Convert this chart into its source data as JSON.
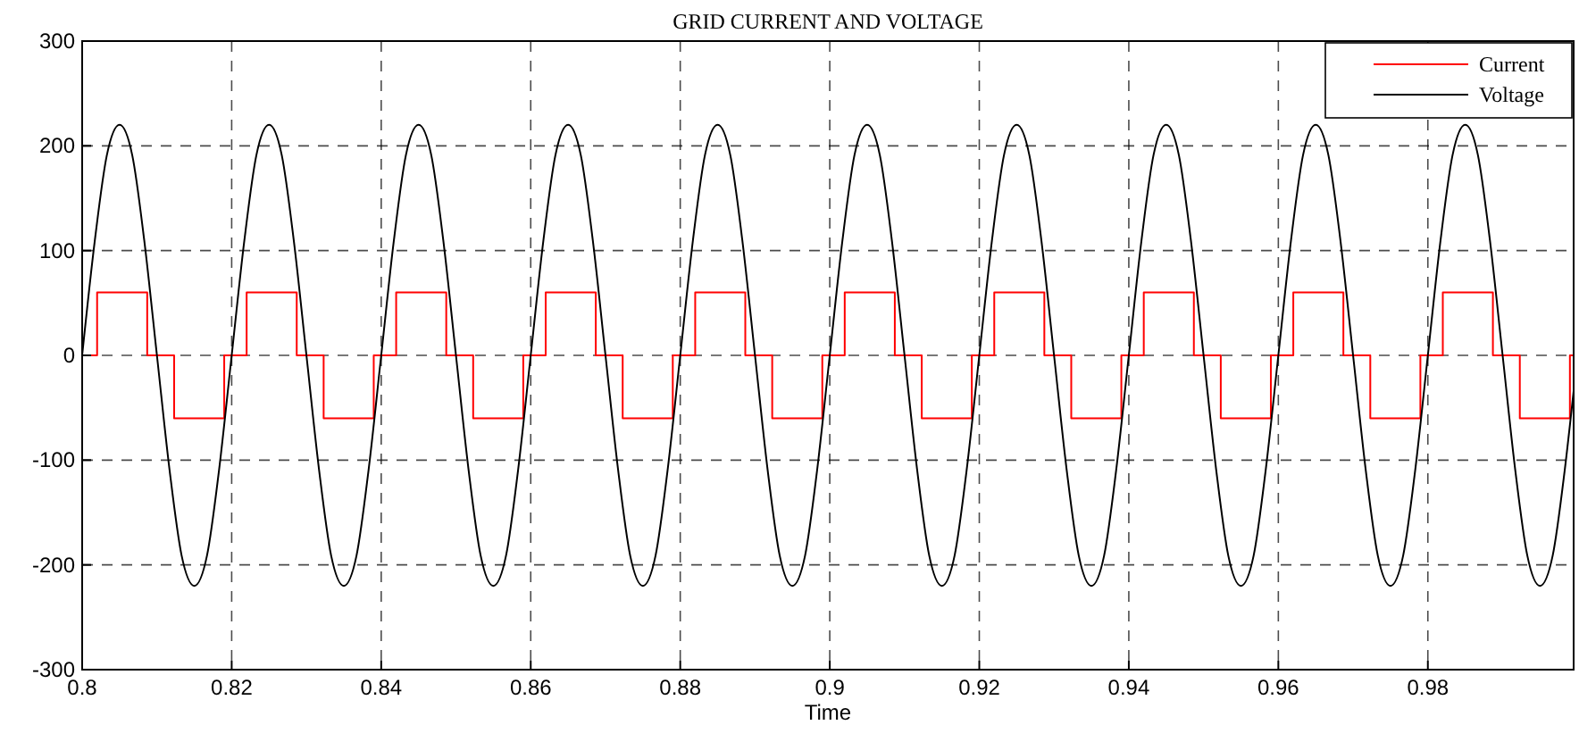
{
  "chart_data": {
    "type": "line",
    "title": "GRID CURRENT AND VOLTAGE",
    "xlabel": "Time",
    "xlim": [
      0.8,
      0.9995
    ],
    "ylim": [
      -300,
      300
    ],
    "xticks": [
      0.8,
      0.82,
      0.84,
      0.86,
      0.88,
      0.9,
      0.92,
      0.94,
      0.96,
      0.98
    ],
    "yticks": [
      -300,
      -200,
      -100,
      0,
      100,
      200,
      300
    ],
    "grid": true,
    "legend": "top right",
    "line_style": "solid",
    "marker": "none",
    "series": [
      {
        "name": "Current",
        "color": "#ff0000",
        "x": [
          0.8,
          0.802,
          0.802,
          0.8087,
          0.8087,
          0.8123,
          0.8123,
          0.819,
          0.819,
          0.822,
          0.822,
          0.8287,
          0.8287,
          0.8323,
          0.8323,
          0.839,
          0.839,
          0.842,
          0.842,
          0.8487,
          0.8487,
          0.8523,
          0.8523,
          0.859,
          0.859,
          0.862,
          0.862,
          0.8687,
          0.8687,
          0.8723,
          0.8723,
          0.879,
          0.879,
          0.882,
          0.882,
          0.8887,
          0.8887,
          0.8923,
          0.8923,
          0.899,
          0.899,
          0.902,
          0.902,
          0.9087,
          0.9087,
          0.9123,
          0.9123,
          0.919,
          0.919,
          0.922,
          0.922,
          0.9287,
          0.9287,
          0.9323,
          0.9323,
          0.939,
          0.939,
          0.942,
          0.942,
          0.9487,
          0.9487,
          0.9523,
          0.9523,
          0.959,
          0.959,
          0.962,
          0.962,
          0.9687,
          0.9687,
          0.9723,
          0.9723,
          0.979,
          0.979,
          0.982,
          0.982,
          0.9887,
          0.9887,
          0.9923,
          0.9923,
          0.999,
          0.999,
          0.9995
        ],
        "values": [
          0,
          0,
          60,
          60,
          0,
          0,
          -60,
          -60,
          0,
          0,
          60,
          60,
          0,
          0,
          -60,
          -60,
          0,
          0,
          60,
          60,
          0,
          0,
          -60,
          -60,
          0,
          0,
          60,
          60,
          0,
          0,
          -60,
          -60,
          0,
          0,
          60,
          60,
          0,
          0,
          -60,
          -60,
          0,
          0,
          60,
          60,
          0,
          0,
          -60,
          -60,
          0,
          0,
          60,
          60,
          0,
          0,
          -60,
          -60,
          0,
          0,
          60,
          60,
          0,
          0,
          -60,
          -60,
          0,
          0,
          60,
          60,
          0,
          0,
          -60,
          -60,
          0,
          0,
          60,
          60,
          0,
          0,
          -60,
          -60,
          0,
          0
        ]
      },
      {
        "name": "Voltage",
        "color": "#000000",
        "x": [
          0.8,
          0.8017,
          0.8033,
          0.805,
          0.8067,
          0.8083,
          0.81,
          0.8117,
          0.8133,
          0.815,
          0.8167,
          0.8183,
          0.82,
          0.8217,
          0.8233,
          0.825,
          0.8267,
          0.8283,
          0.83,
          0.8317,
          0.8333,
          0.835,
          0.8367,
          0.8383,
          0.84,
          0.8417,
          0.8433,
          0.845,
          0.8467,
          0.8483,
          0.85,
          0.8517,
          0.8533,
          0.855,
          0.8567,
          0.8583,
          0.86,
          0.8617,
          0.8633,
          0.865,
          0.8667,
          0.8683,
          0.87,
          0.8717,
          0.8733,
          0.875,
          0.8767,
          0.8783,
          0.88,
          0.8817,
          0.8833,
          0.885,
          0.8867,
          0.8883,
          0.89,
          0.8917,
          0.8933,
          0.895,
          0.8967,
          0.8983,
          0.9,
          0.9017,
          0.9033,
          0.905,
          0.9067,
          0.9083,
          0.91,
          0.9117,
          0.9133,
          0.915,
          0.9167,
          0.9183,
          0.92,
          0.9217,
          0.9233,
          0.925,
          0.9267,
          0.9283,
          0.93,
          0.9317,
          0.9333,
          0.935,
          0.9367,
          0.9383,
          0.94,
          0.9417,
          0.9433,
          0.945,
          0.9467,
          0.9483,
          0.95,
          0.9517,
          0.9533,
          0.955,
          0.9567,
          0.9583,
          0.96,
          0.9617,
          0.9633,
          0.965,
          0.9667,
          0.9683,
          0.97,
          0.9717,
          0.9733,
          0.975,
          0.9767,
          0.9783,
          0.98,
          0.9817,
          0.9833,
          0.985,
          0.9867,
          0.9883,
          0.99,
          0.9917,
          0.9933,
          0.995,
          0.9967,
          0.9983,
          0.9995
        ],
        "values": [
          0,
          110,
          191,
          220,
          191,
          110,
          0,
          -110,
          -191,
          -220,
          -191,
          -110,
          0,
          110,
          191,
          220,
          191,
          110,
          0,
          -110,
          -191,
          -220,
          -191,
          -110,
          0,
          110,
          191,
          220,
          191,
          110,
          0,
          -110,
          -191,
          -220,
          -191,
          -110,
          0,
          110,
          191,
          220,
          191,
          110,
          0,
          -110,
          -191,
          -220,
          -191,
          -110,
          0,
          110,
          191,
          220,
          191,
          110,
          0,
          -110,
          -191,
          -220,
          -191,
          -110,
          0,
          110,
          191,
          220,
          191,
          110,
          0,
          -110,
          -191,
          -220,
          -191,
          -110,
          0,
          110,
          191,
          220,
          191,
          110,
          0,
          -110,
          -191,
          -220,
          -191,
          -110,
          0,
          110,
          191,
          220,
          191,
          110,
          0,
          -110,
          -191,
          -220,
          -191,
          -110,
          0,
          110,
          191,
          220,
          191,
          110,
          0,
          -110,
          -191,
          -220,
          -191,
          -110,
          0,
          110,
          191,
          220,
          191,
          110,
          0,
          -110,
          -191,
          -220,
          -191,
          -110,
          -34
        ]
      }
    ]
  }
}
